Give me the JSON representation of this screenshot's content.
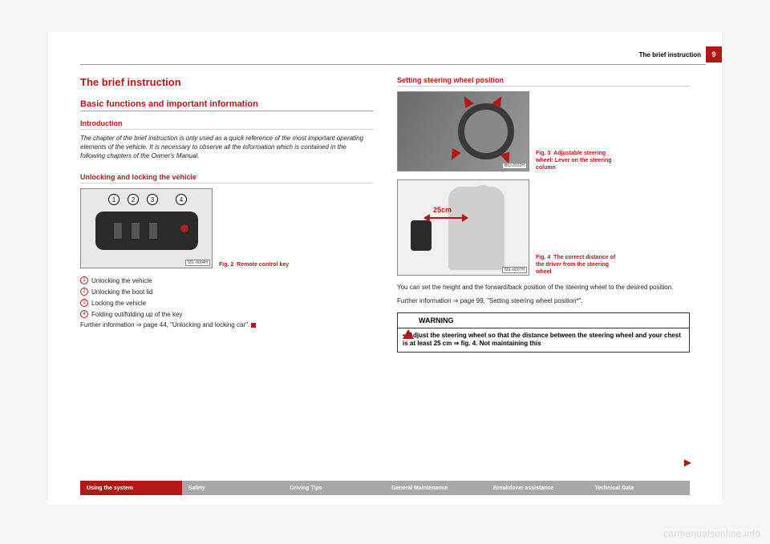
{
  "colors": {
    "accent": "#b31818",
    "tab_inactive": "#a8a8a8",
    "text": "#222222",
    "rule": "#999999",
    "page_bg": "#ffffff",
    "outer_bg": "#f5f5f5"
  },
  "header": {
    "running_title": "The brief instruction",
    "page_number": "9"
  },
  "title": "The brief instruction",
  "section_heading": "Basic functions and important information",
  "introduction": {
    "heading": "Introduction",
    "body": "The chapter of the brief instruction is only used as a quick reference of the most important operating elements of the vehicle. It is necessary to observe all the information which is contained in the following chapters of the Owner's Manual."
  },
  "unlock": {
    "heading": "Unlocking and locking the vehicle",
    "fig": {
      "num": "Fig. 2",
      "caption": "Remote control key",
      "code": "S5L-0004H",
      "callouts": [
        "1",
        "2",
        "3",
        "4"
      ]
    },
    "items": [
      {
        "n": "1",
        "text": "Unlocking the vehicle"
      },
      {
        "n": "2",
        "text": "Unlocking the boot lid"
      },
      {
        "n": "3",
        "text": "Locking the vehicle"
      },
      {
        "n": "4",
        "text": "Folding out/folding up of the key"
      }
    ],
    "further": "Further information ⇒ page 44, \"Unlocking and locking car\"."
  },
  "steering": {
    "heading": "Setting steering wheel position",
    "fig3": {
      "num": "Fig. 3",
      "caption": "Adjustable steering wheel: Lever on the steering column",
      "code": "B5J-2032H"
    },
    "fig4": {
      "num": "Fig. 4",
      "caption": "The correct distance of the driver from the steering wheel",
      "code": "S5L-0007H",
      "dist_label": "25cm"
    },
    "body1": "You can set the height and the forward/back position of the steering wheel to the desired position.",
    "body2": "Further information ⇒ page 99, \"Setting steering wheel position*\"."
  },
  "warning": {
    "title": "WARNING",
    "bullet": "•",
    "body": "Adjust the steering wheel so that the distance between the steering wheel and your chest is at least 25 cm ⇒ fig. 4. Not maintaining this"
  },
  "footer_tabs": [
    {
      "label": "Using the system",
      "active": true
    },
    {
      "label": "Safety",
      "active": false
    },
    {
      "label": "Driving Tips",
      "active": false
    },
    {
      "label": "General Maintenance",
      "active": false
    },
    {
      "label": "Breakdown assistance",
      "active": false
    },
    {
      "label": "Technical Data",
      "active": false
    }
  ],
  "watermark": "carmanualsonline.info"
}
